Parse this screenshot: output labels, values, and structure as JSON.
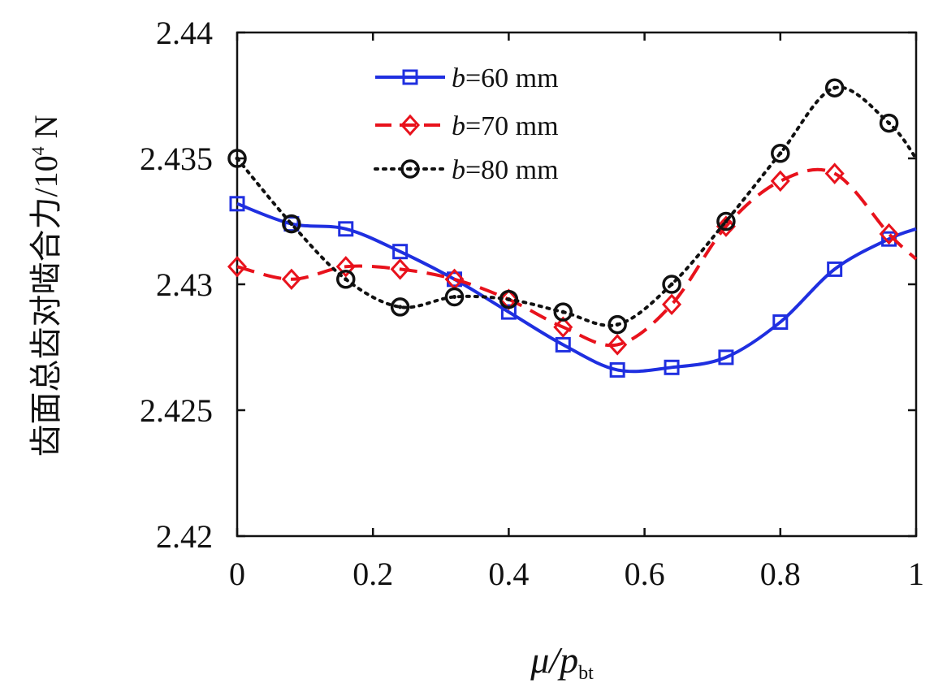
{
  "chart_data": {
    "type": "line",
    "xlabel": {
      "main": "μ/p",
      "sub": "bt"
    },
    "ylabel": {
      "main": "齿面总齿对啮合力/10",
      "sup": "4",
      "unit": " N"
    },
    "xlim": [
      0,
      1
    ],
    "ylim": [
      2.42,
      2.44
    ],
    "xticks": [
      0,
      0.2,
      0.4,
      0.6,
      0.8,
      1
    ],
    "xtick_labels": [
      "0",
      "0.2",
      "0.4",
      "0.6",
      "0.8",
      "1"
    ],
    "yticks": [
      2.42,
      2.425,
      2.43,
      2.435,
      2.44
    ],
    "ytick_labels": [
      "2.42",
      "2.425",
      "2.43",
      "2.435",
      "2.44"
    ],
    "grid": false,
    "legend_position": "top-center",
    "x": [
      0,
      0.08,
      0.16,
      0.24,
      0.32,
      0.4,
      0.48,
      0.56,
      0.64,
      0.72,
      0.8,
      0.88,
      0.96
    ],
    "series": [
      {
        "name_prefix": "b",
        "name_suffix": "=60 mm",
        "color": "#1f2fe0",
        "line_style": "solid",
        "marker": "square",
        "values": [
          2.4332,
          2.4324,
          2.4322,
          2.4313,
          2.4302,
          2.4289,
          2.4276,
          2.4266,
          2.4267,
          2.4271,
          2.4285,
          2.4306,
          2.4318
        ],
        "end": [
          1.0,
          2.4322
        ]
      },
      {
        "name_prefix": "b",
        "name_suffix": "=70 mm",
        "color": "#e8121c",
        "line_style": "dashed",
        "marker": "diamond",
        "values": [
          2.4307,
          2.4302,
          2.4307,
          2.4306,
          2.4302,
          2.4294,
          2.4283,
          2.4276,
          2.4292,
          2.4323,
          2.4341,
          2.4344,
          2.432
        ],
        "end": [
          1.0,
          2.431
        ]
      },
      {
        "name_prefix": "b",
        "name_suffix": "=80 mm",
        "color": "#111111",
        "line_style": "dotted",
        "marker": "circle",
        "values": [
          2.435,
          2.4324,
          2.4302,
          2.4291,
          2.4295,
          2.4294,
          2.4289,
          2.4284,
          2.43,
          2.4325,
          2.4352,
          2.4378,
          2.4364
        ],
        "end": [
          1.0,
          2.435
        ]
      }
    ]
  }
}
